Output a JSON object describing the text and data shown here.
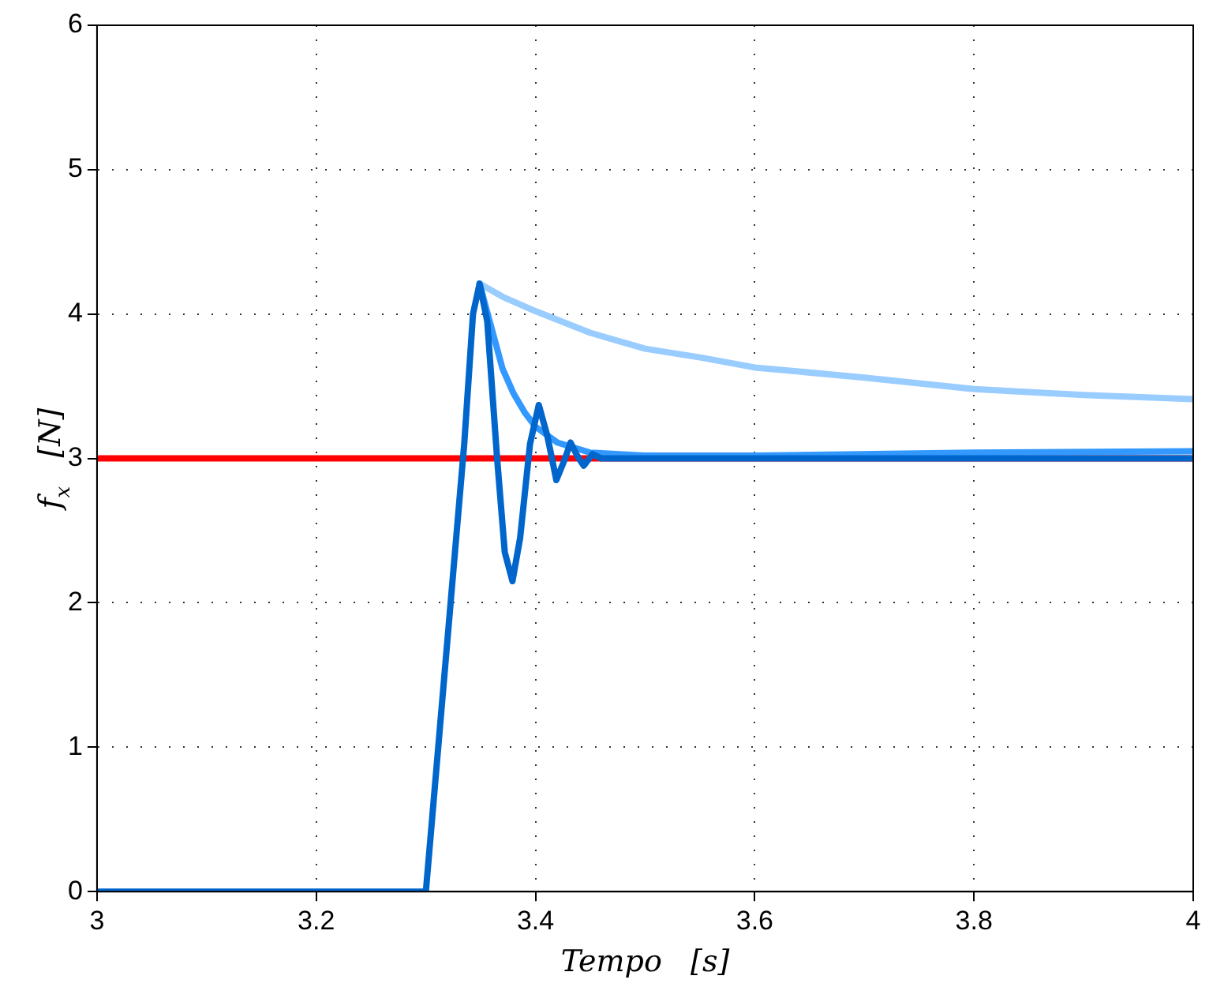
{
  "chart_data": {
    "type": "line",
    "xlabel": "Tempo   [s]",
    "ylabel": "f$_{x}$   [N]",
    "xlim": [
      3,
      4
    ],
    "xticks": [
      3,
      3.2,
      3.4,
      3.6,
      3.8,
      4
    ],
    "ylim": [
      0,
      6
    ],
    "yticks": [
      0,
      1,
      2,
      3,
      4,
      5,
      6
    ],
    "grid": true,
    "legend": false,
    "line_style": "solid",
    "marker": "none",
    "ref_lines": [
      {
        "axis": "y",
        "value": 3,
        "color": "#ff0000"
      }
    ],
    "series": [
      {
        "color": "#99ccff",
        "x": [
          3.349,
          3.37,
          3.4,
          3.45,
          3.5,
          3.55,
          3.6,
          3.7,
          3.8,
          3.9,
          4
        ],
        "values": [
          4.21,
          4.12,
          4.02,
          3.87,
          3.76,
          3.7,
          3.63,
          3.56,
          3.48,
          3.44,
          3.41
        ]
      },
      {
        "color": "#3399ff",
        "x": [
          3.349,
          3.36,
          3.37,
          3.38,
          3.39,
          3.4,
          3.42,
          3.45,
          3.5,
          3.6,
          3.8,
          4
        ],
        "values": [
          4.21,
          3.9,
          3.62,
          3.45,
          3.32,
          3.22,
          3.11,
          3.04,
          3.02,
          3.02,
          3.04,
          3.05
        ]
      },
      {
        "color": "#0066cc",
        "x": [
          3,
          3.3,
          3.335,
          3.343,
          3.349,
          3.356,
          3.365,
          3.372,
          3.379,
          3.386,
          3.395,
          3.403,
          3.411,
          3.419,
          3.426,
          3.432,
          3.438,
          3.444,
          3.452,
          3.46,
          3.5,
          4
        ],
        "values": [
          0,
          0,
          3.1,
          4.0,
          4.21,
          3.95,
          3.0,
          2.35,
          2.15,
          2.45,
          3.1,
          3.37,
          3.15,
          2.85,
          2.98,
          3.11,
          3.02,
          2.95,
          3.03,
          3.0,
          3.0,
          3.0
        ]
      }
    ]
  }
}
